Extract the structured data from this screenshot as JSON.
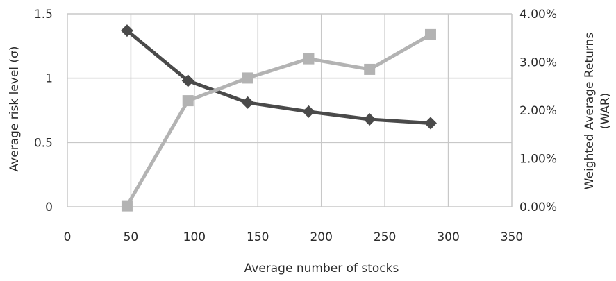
{
  "chart_data": {
    "type": "line",
    "xlabel": "Average number of stocks",
    "ylabel_left": "Average risk level (σ)",
    "ylabel_right": "Weighted Average Returns (WAR)",
    "xlim": [
      0,
      350
    ],
    "ylim_left": [
      0,
      1.5
    ],
    "ylim_right": [
      0,
      0.04
    ],
    "x_ticks": [
      0,
      50,
      100,
      150,
      200,
      250,
      300,
      350
    ],
    "x_tick_labels": [
      "0",
      "50",
      "100",
      "150",
      "200",
      "250",
      "300",
      "350"
    ],
    "y_left_ticks": [
      0,
      0.5,
      1,
      1.5
    ],
    "y_left_tick_labels": [
      "0",
      "0.5",
      "1",
      "1.5"
    ],
    "y_right_ticks": [
      0,
      0.01,
      0.02,
      0.03,
      0.04
    ],
    "y_right_tick_labels": [
      "0.00%",
      "1.00%",
      "2.00%",
      "3.00%",
      "4.00%"
    ],
    "grid": true,
    "legend": "none",
    "series": [
      {
        "axis": "left",
        "marker": "diamond",
        "color": "#4a4a4a",
        "x": [
          47,
          95,
          142,
          190,
          238,
          286
        ],
        "values": [
          1.37,
          0.98,
          0.81,
          0.74,
          0.68,
          0.65
        ]
      },
      {
        "axis": "right",
        "marker": "square",
        "color": "#b3b3b3",
        "x": [
          47,
          95,
          142,
          190,
          238,
          286
        ],
        "values": [
          0.0002,
          0.022,
          0.0267,
          0.0307,
          0.0285,
          0.0357
        ]
      }
    ]
  }
}
